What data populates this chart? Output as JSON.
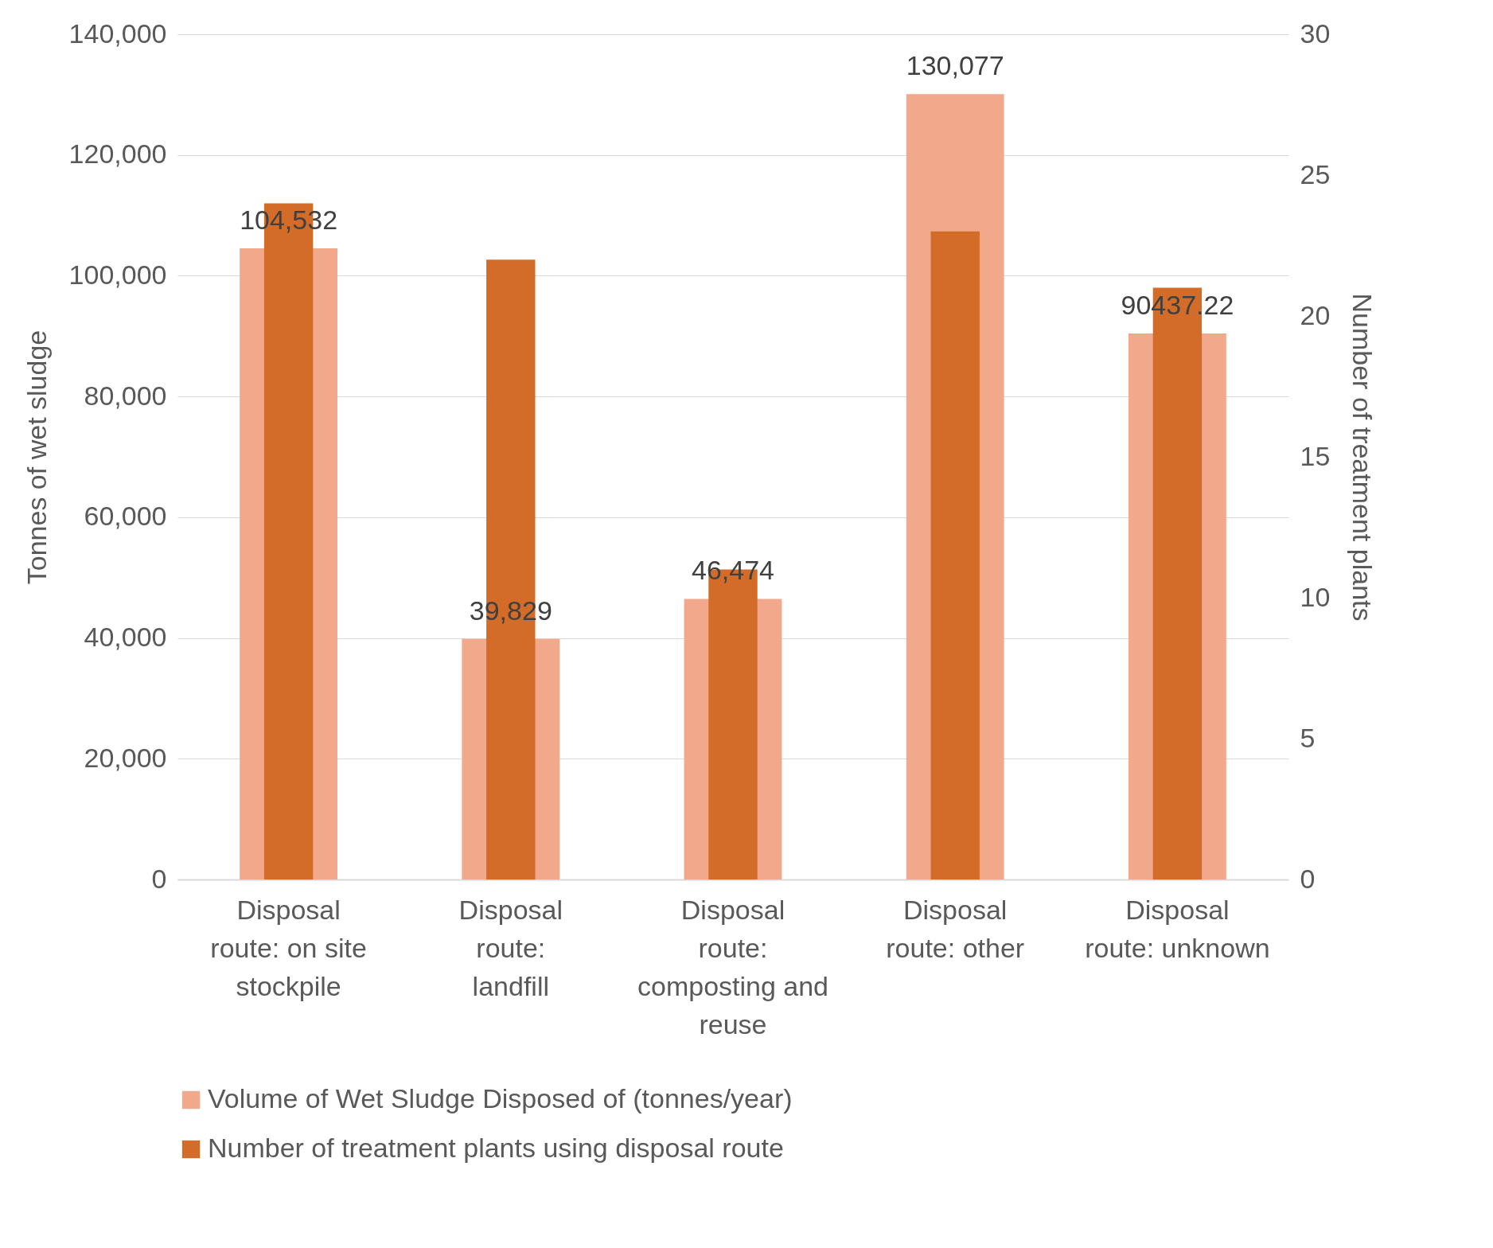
{
  "chart_data": {
    "type": "bar",
    "categories": [
      "Disposal route: on site stockpile",
      "Disposal route: landfill",
      "Disposal route: composting and reuse",
      "Disposal route: other",
      "Disposal route: unknown"
    ],
    "series": [
      {
        "name": "Volume of Wet Sludge Disposed of (tonnes/year)",
        "color": "#f1a88b",
        "values": [
          104532,
          39829,
          46474,
          130077,
          90437.22
        ],
        "value_labels": [
          "104,532",
          "39,829",
          "46,474",
          "130,077",
          "90437.22"
        ]
      },
      {
        "name": "Number of treatment plants using disposal route",
        "color": "#d26c28",
        "values": [
          24,
          22,
          11,
          23,
          21
        ],
        "axis": "y2"
      }
    ],
    "ylabel": "Tonnes of wet sludge",
    "y2label": "Number of treatment plants",
    "ylim": [
      0,
      140000
    ],
    "yticks": [
      {
        "value": 0,
        "label": "0"
      },
      {
        "value": 20000,
        "label": "20,000"
      },
      {
        "value": 40000,
        "label": "40,000"
      },
      {
        "value": 60000,
        "label": "60,000"
      },
      {
        "value": 80000,
        "label": "80,000"
      },
      {
        "value": 100000,
        "label": "100,000"
      },
      {
        "value": 120000,
        "label": "120,000"
      },
      {
        "value": 140000,
        "label": "140,000"
      }
    ],
    "y2lim": [
      0,
      30
    ],
    "y2ticks": [
      0,
      5,
      10,
      15,
      20,
      25,
      30
    ],
    "grid": "y",
    "legend": "bottom"
  }
}
